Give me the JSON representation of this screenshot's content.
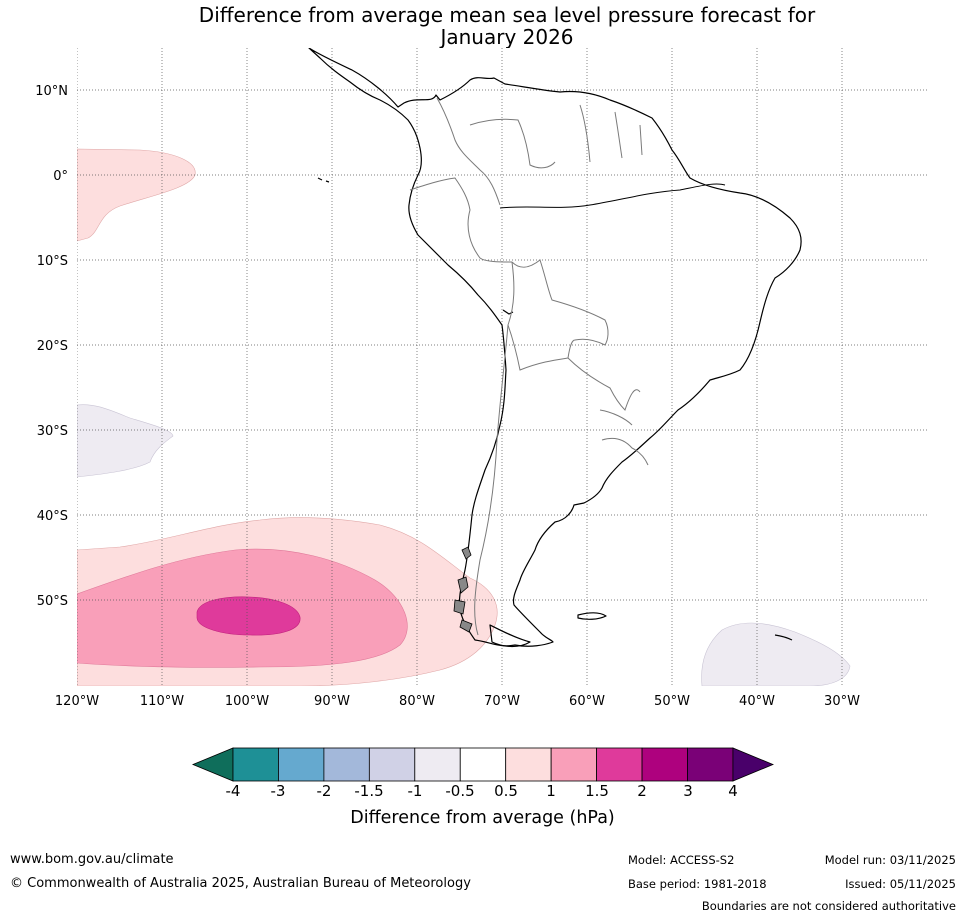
{
  "title": "Difference from average mean sea level pressure forecast for January 2026",
  "title_lines": [
    "Difference from average mean sea level pressure forecast for",
    "January 2026"
  ],
  "map": {
    "extent": {
      "lon_min": -120,
      "lon_max": -20,
      "lat_min": -60,
      "lat_max": 15
    },
    "lat_ticks": [
      "10°N",
      "0°",
      "10°S",
      "20°S",
      "30°S",
      "40°S",
      "50°S"
    ],
    "lon_ticks": [
      "120°W",
      "110°W",
      "100°W",
      "90°W",
      "80°W",
      "70°W",
      "60°W",
      "50°W",
      "40°W",
      "30°W"
    ],
    "anomaly_regions": [
      {
        "name": "east-pacific-equatorial",
        "class": "0.5 to 1 hPa",
        "color": "#fddede"
      },
      {
        "name": "southeast-pacific-outer",
        "class": "0.5 to 1 hPa",
        "color": "#fddede"
      },
      {
        "name": "southeast-pacific-middle",
        "class": "1 to 1.5 hPa",
        "color": "#f99fb9"
      },
      {
        "name": "southeast-pacific-core",
        "class": "1.5 to 2 hPa",
        "color": "#df3a9b"
      },
      {
        "name": "subtropical-pacific",
        "class": "-1 to -0.5 hPa",
        "color": "#eeebf2"
      },
      {
        "name": "south-atlantic",
        "class": "-1 to -0.5 hPa",
        "color": "#eeebf2"
      }
    ]
  },
  "colorbar": {
    "title": "Difference from average (hPa)",
    "tick_labels": [
      "-4",
      "-3",
      "-2",
      "-1.5",
      "-1",
      "-0.5",
      "0.5",
      "1",
      "1.5",
      "2",
      "3",
      "4"
    ],
    "colors": [
      "#0f6e5b",
      "#1e9096",
      "#65a9cf",
      "#a3b8da",
      "#d0d1e6",
      "#eeebf2",
      "#ffffff",
      "#fddede",
      "#f99fb9",
      "#df3a9b",
      "#ae017e",
      "#7a0177",
      "#49006a"
    ]
  },
  "footer": {
    "url": "www.bom.gov.au/climate",
    "copyright": "© Commonwealth of Australia 2025, Australian Bureau of Meteorology",
    "model": "Model: ACCESS-S2",
    "base_period": "Base period: 1981-2018",
    "model_run": "Model run: 03/11/2025",
    "issued": "Issued: 05/11/2025",
    "disclaimer": "Boundaries are not considered authoritative"
  }
}
